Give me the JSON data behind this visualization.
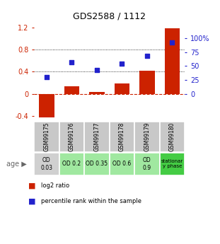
{
  "title": "GDS2588 / 1112",
  "samples": [
    "GSM99175",
    "GSM99176",
    "GSM99177",
    "GSM99178",
    "GSM99179",
    "GSM99180"
  ],
  "log2_ratio": [
    -0.43,
    0.13,
    0.03,
    0.18,
    0.42,
    1.18
  ],
  "percentile_rank": [
    0.3,
    0.57,
    0.43,
    0.55,
    0.68,
    0.93
  ],
  "age_labels": [
    "OD\n0.03",
    "OD 0.2",
    "OD 0.35",
    "OD 0.6",
    "OD\n0.9",
    "stationar\ny phase"
  ],
  "age_colors": [
    "#d0d0d0",
    "#a0e8a0",
    "#a0e8a0",
    "#a0e8a0",
    "#a0e8a0",
    "#44cc44"
  ],
  "bar_color": "#cc2200",
  "dot_color": "#2222cc",
  "ylim_left": [
    -0.5,
    1.3
  ],
  "yticks_left": [
    -0.4,
    0.0,
    0.4,
    0.8,
    1.2
  ],
  "ytick_labels_left": [
    "-0.4",
    "0",
    "0.4",
    "0.8",
    "1.2"
  ],
  "yticks_right_data": [
    0.0,
    0.25,
    0.5,
    0.75,
    1.0
  ],
  "ytick_labels_right": [
    "0",
    "25",
    "50",
    "75",
    "100%"
  ],
  "hlines": [
    0.4,
    0.8
  ],
  "zero_line_y": 0.0,
  "legend_labels": [
    "log2 ratio",
    "percentile rank within the sample"
  ],
  "background_color": "#ffffff",
  "sample_bg_color": "#c8c8c8"
}
